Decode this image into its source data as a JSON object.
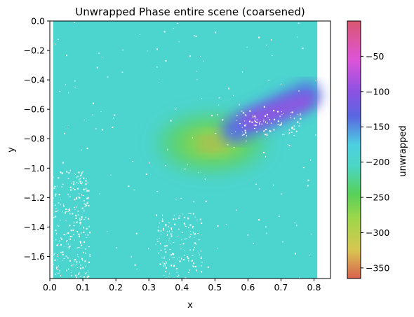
{
  "chart_data": {
    "type": "heatmap",
    "title": "Unwrapped Phase entire scene (coarsened)",
    "xlabel": "x",
    "ylabel": "y",
    "xlim": [
      0.0,
      0.85
    ],
    "ylim": [
      -1.75,
      0.0
    ],
    "data_extent_x": [
      0.01,
      0.81
    ],
    "xticks": [
      0.0,
      0.1,
      0.2,
      0.3,
      0.4,
      0.5,
      0.6,
      0.7,
      0.8
    ],
    "xtick_labels": [
      "0.0",
      "0.1",
      "0.2",
      "0.3",
      "0.4",
      "0.5",
      "0.6",
      "0.7",
      "0.8"
    ],
    "yticks": [
      0.0,
      -0.2,
      -0.4,
      -0.6,
      -0.8,
      -1.0,
      -1.2,
      -1.4,
      -1.6
    ],
    "ytick_labels": [
      "0.0",
      "−0.2",
      "−0.4",
      "−0.6",
      "−0.8",
      "−1.0",
      "−1.2",
      "−1.4",
      "−1.6"
    ],
    "background_value": -195,
    "features": [
      {
        "kind": "blob",
        "cx": 0.49,
        "cy": -0.83,
        "rx": 0.16,
        "ry": 0.19,
        "value": -232
      },
      {
        "kind": "blob",
        "cx": 0.49,
        "cy": -0.83,
        "rx": 0.1,
        "ry": 0.11,
        "value": -265
      },
      {
        "kind": "blob",
        "cx": 0.495,
        "cy": -0.83,
        "rx": 0.05,
        "ry": 0.055,
        "value": -300
      },
      {
        "kind": "blob",
        "cx": 0.49,
        "cy": -0.835,
        "rx": 0.025,
        "ry": 0.03,
        "value": -350
      },
      {
        "kind": "lobe",
        "x0": 0.56,
        "y0": -0.74,
        "x1": 0.78,
        "y1": -0.5,
        "width": 0.08,
        "value": -140
      },
      {
        "kind": "lobe",
        "x0": 0.6,
        "y0": -0.68,
        "x1": 0.78,
        "y1": -0.54,
        "width": 0.045,
        "value": -95
      }
    ],
    "colorbar": {
      "label": "unwrapped",
      "range": [
        -365,
        0
      ],
      "ticks": [
        -50,
        -100,
        -150,
        -200,
        -250,
        -300,
        -350
      ],
      "tick_labels": [
        "−50",
        "−100",
        "−150",
        "−200",
        "−250",
        "−300",
        "−350"
      ],
      "colormap": [
        {
          "value": -365,
          "color": "#d9604f"
        },
        {
          "value": -325,
          "color": "#d8c552"
        },
        {
          "value": -280,
          "color": "#9fd74a"
        },
        {
          "value": -245,
          "color": "#57d05a"
        },
        {
          "value": -205,
          "color": "#4bd6c6"
        },
        {
          "value": -175,
          "color": "#4dcfe0"
        },
        {
          "value": -135,
          "color": "#5a66e0"
        },
        {
          "value": -100,
          "color": "#8c52e2"
        },
        {
          "value": -55,
          "color": "#dd54d8"
        },
        {
          "value": 0,
          "color": "#da5770"
        }
      ]
    }
  }
}
